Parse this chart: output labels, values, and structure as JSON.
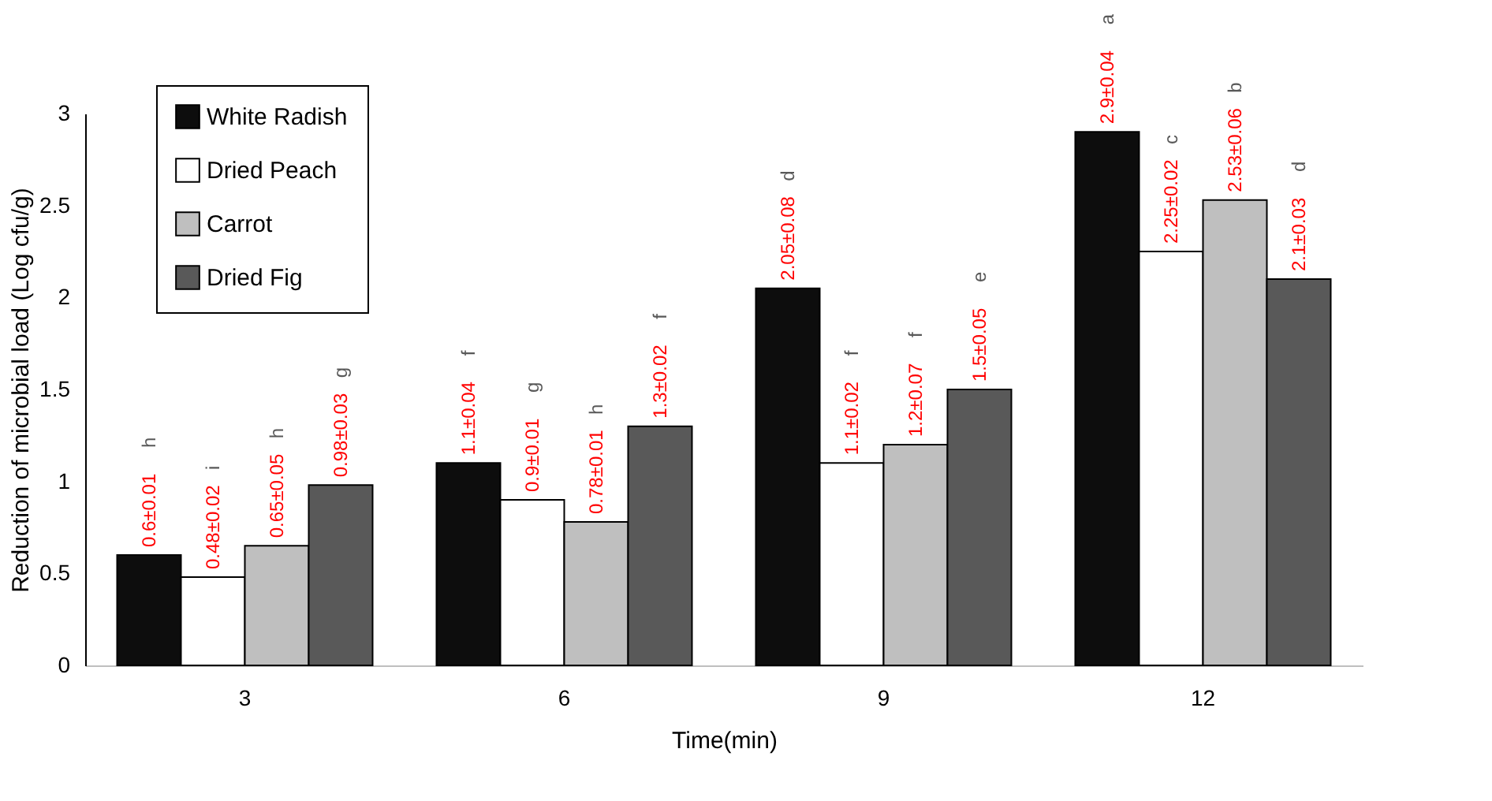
{
  "chart_data": {
    "type": "bar",
    "xlabel": "Time(min)",
    "ylabel": "Reduction of microbial load (Log cfu/g)",
    "categories": [
      "3",
      "6",
      "9",
      "12"
    ],
    "series": [
      {
        "name": "White Radish",
        "color": "#0d0d0d",
        "values": [
          0.6,
          1.1,
          2.05,
          2.9
        ],
        "value_labels": [
          "0.6±0.01",
          "1.1±0.04",
          "2.05±0.08",
          "2.9±0.04"
        ]
      },
      {
        "name": "Dried Peach",
        "color": "#ffffff",
        "values": [
          0.48,
          0.9,
          1.1,
          2.25
        ],
        "value_labels": [
          "0.48±0.02",
          "0.9±0.01",
          "1.1±0.02",
          "2.25±0.02"
        ]
      },
      {
        "name": "Carrot",
        "color": "#bfbfbf",
        "values": [
          0.65,
          0.78,
          1.2,
          2.53
        ],
        "value_labels": [
          "0.65±0.05",
          "0.78±0.01",
          "1.2±0.07",
          "2.53±0.06"
        ]
      },
      {
        "name": "Dried Fig",
        "color": "#595959",
        "values": [
          0.98,
          1.3,
          1.5,
          2.1
        ],
        "value_labels": [
          "0.98±0.03",
          "1.3±0.02",
          "1.5±0.05",
          "2.1±0.03"
        ]
      }
    ],
    "annotations": [
      "h",
      "i",
      "h",
      "g",
      "f",
      "g",
      "h",
      "f",
      "d",
      "f",
      "f",
      "e",
      "a",
      "c",
      "b",
      "d"
    ],
    "ylim": [
      0,
      3
    ],
    "yticks": [
      0,
      0.5,
      1,
      1.5,
      2,
      2.5,
      3
    ],
    "grid": false,
    "legend": "top left"
  }
}
